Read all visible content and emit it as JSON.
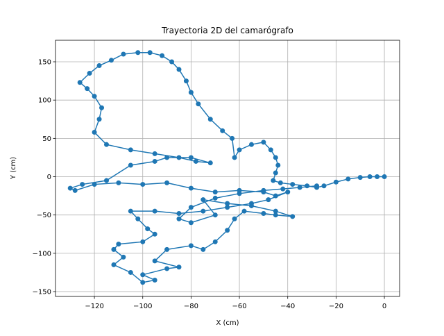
{
  "chart_data": {
    "type": "line",
    "title": "Trayectoria 2D del camarógrafo",
    "xlabel": "X (cm)",
    "ylabel": "Y (cm)",
    "color": "#1f77b4",
    "grid": true,
    "markers": true,
    "xlim": [
      -136.1,
      6.3
    ],
    "ylim": [
      -156.3,
      178.1
    ],
    "xticks": [
      {
        "value": -120,
        "label": "−120"
      },
      {
        "value": -100,
        "label": "−100"
      },
      {
        "value": -80,
        "label": "−80"
      },
      {
        "value": -60,
        "label": "−60"
      },
      {
        "value": -40,
        "label": "−40"
      },
      {
        "value": -20,
        "label": "−20"
      },
      0
    ],
    "yticks": [
      {
        "value": -150,
        "label": "−150"
      },
      {
        "value": -100,
        "label": "−100"
      },
      {
        "value": -50,
        "label": "−50"
      },
      0,
      50,
      100,
      150
    ],
    "x": [
      0,
      -3,
      -6,
      -10,
      -15,
      -20,
      -25,
      -28,
      -32,
      -38,
      -43,
      -46,
      -45,
      -44,
      -45,
      -47,
      -50,
      -55,
      -60,
      -62,
      -63,
      -67,
      -72,
      -77,
      -80,
      -82,
      -85,
      -88,
      -92,
      -97,
      -102,
      -108,
      -113,
      -118,
      -122,
      -126,
      -123,
      -120,
      -117,
      -118,
      -120,
      -115,
      -105,
      -95,
      -85,
      -78,
      -72,
      -80,
      -90,
      -95,
      -105,
      -115,
      -125,
      -130,
      -128,
      -120,
      -110,
      -100,
      -90,
      -80,
      -70,
      -60,
      -50,
      -45,
      -40,
      -48,
      -55,
      -65,
      -75,
      -85,
      -95,
      -105,
      -102,
      -98,
      -95,
      -100,
      -110,
      -112,
      -108,
      -112,
      -105,
      -100,
      -95,
      -100,
      -90,
      -85,
      -95,
      -90,
      -80,
      -75,
      -70,
      -65,
      -62,
      -58,
      -50,
      -45,
      -38,
      -45,
      -55,
      -65,
      -75,
      -70,
      -80,
      -85,
      -80,
      -70,
      -60,
      -50,
      -42,
      -35,
      -28
    ],
    "values": [
      0,
      0,
      0,
      -1,
      -3,
      -7,
      -12,
      -14,
      -12,
      -10,
      -8,
      -5,
      5,
      15,
      25,
      35,
      45,
      42,
      35,
      25,
      50,
      60,
      75,
      95,
      110,
      125,
      140,
      150,
      158,
      162,
      162,
      160,
      152,
      145,
      135,
      123,
      115,
      105,
      90,
      75,
      58,
      42,
      35,
      30,
      25,
      20,
      18,
      25,
      25,
      20,
      15,
      -5,
      -10,
      -15,
      -18,
      -10,
      -8,
      -10,
      -8,
      -15,
      -20,
      -18,
      -20,
      -25,
      -20,
      -30,
      -35,
      -40,
      -45,
      -48,
      -45,
      -45,
      -55,
      -68,
      -75,
      -85,
      -88,
      -95,
      -105,
      -115,
      -125,
      -138,
      -135,
      -128,
      -120,
      -118,
      -110,
      -95,
      -90,
      -95,
      -85,
      -70,
      -55,
      -45,
      -48,
      -50,
      -52,
      -45,
      -38,
      -35,
      -30,
      -50,
      -60,
      -55,
      -40,
      -28,
      -22,
      -18,
      -16,
      -14,
      -12
    ]
  }
}
